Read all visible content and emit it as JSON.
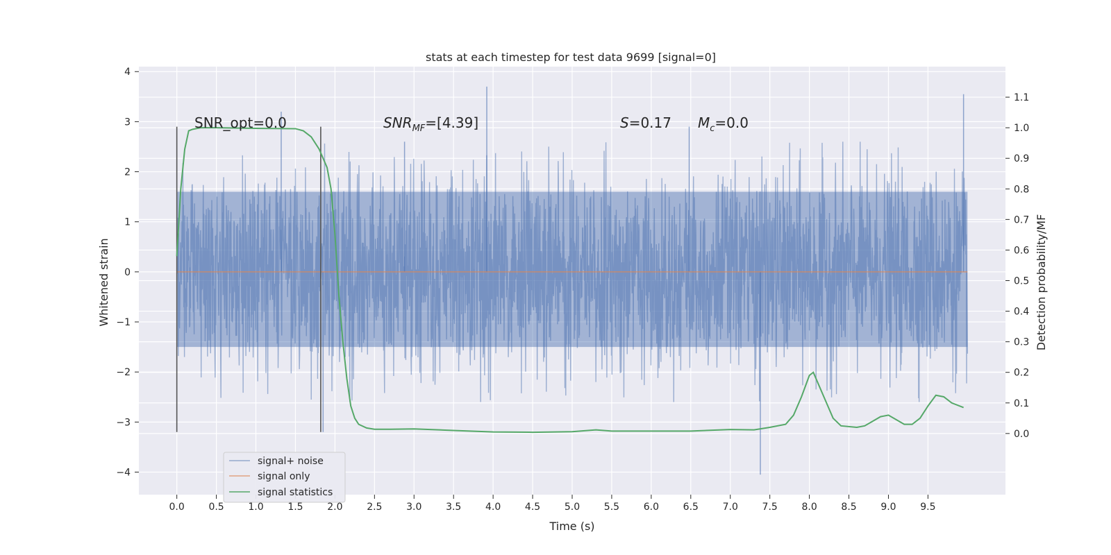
{
  "chart_data": {
    "type": "line",
    "title": "stats at each timestep for test data 9699 [signal=0]",
    "xlabel": "Time (s)",
    "ylabel_left": "Whitened strain",
    "ylabel_right": "Detection probability/MF",
    "xlim": [
      -0.48,
      10.48
    ],
    "ylim_left": [
      -4.45,
      4.1
    ],
    "ylim_right": [
      -0.2,
      1.2
    ],
    "x_ticks": [
      "0.0",
      "0.5",
      "1.0",
      "1.5",
      "2.0",
      "2.5",
      "3.0",
      "3.5",
      "4.0",
      "4.5",
      "5.0",
      "5.5",
      "6.0",
      "6.5",
      "7.0",
      "7.5",
      "8.0",
      "8.5",
      "9.0",
      "9.5"
    ],
    "y_left_ticks": [
      "−4",
      "−3",
      "−2",
      "−1",
      "0",
      "1",
      "2",
      "3",
      "4"
    ],
    "y_right_ticks": [
      "0.0",
      "0.1",
      "0.2",
      "0.3",
      "0.4",
      "0.5",
      "0.6",
      "0.7",
      "0.8",
      "0.9",
      "1.0",
      "1.1"
    ],
    "grid": true,
    "legend_position": "lower-left",
    "annotations": {
      "snr_opt": "SNR_opt=0.0",
      "snr_mf_main": "SNR",
      "snr_mf_sub": "MF",
      "snr_mf_rest": "=[4.39]",
      "s_main": "S",
      "s_rest": "=0.17",
      "mc_main": "M",
      "mc_sub": "c",
      "mc_rest": "=0.0"
    },
    "markers_x": [
      0.0,
      1.82
    ],
    "series": [
      {
        "name": "signal+ noise",
        "color": "#4c72b0",
        "style": "dense noise between about -2.2 and +2.4 with spikes to about 3.7 and -4.0",
        "x_range": [
          0.0,
          10.0
        ],
        "envelope": [
          -1.5,
          1.6
        ],
        "peaks_x": [
          1.32,
          1.85,
          2.88,
          3.92,
          6.48,
          7.38,
          9.95
        ],
        "peaks_y": [
          3.2,
          -3.2,
          2.6,
          3.7,
          2.9,
          -4.05,
          3.55
        ]
      },
      {
        "name": "signal only",
        "color": "#dd8452",
        "x": [
          0.0,
          10.0
        ],
        "y": [
          0.0,
          0.0
        ]
      },
      {
        "name": "signal statistics",
        "color": "#55a868",
        "x": [
          0.0,
          0.05,
          0.1,
          0.15,
          0.2,
          0.3,
          0.5,
          1.0,
          1.5,
          1.6,
          1.7,
          1.8,
          1.9,
          1.95,
          2.0,
          2.05,
          2.1,
          2.15,
          2.2,
          2.25,
          2.3,
          2.4,
          2.5,
          2.7,
          3.0,
          3.5,
          4.0,
          4.5,
          5.0,
          5.1,
          5.3,
          5.5,
          6.0,
          6.5,
          7.0,
          7.3,
          7.5,
          7.7,
          7.8,
          7.9,
          8.0,
          8.05,
          8.1,
          8.2,
          8.3,
          8.4,
          8.6,
          8.7,
          8.8,
          8.9,
          9.0,
          9.1,
          9.2,
          9.3,
          9.4,
          9.5,
          9.6,
          9.7,
          9.8,
          9.95
        ],
        "y": [
          0.58,
          0.8,
          0.93,
          0.99,
          0.995,
          1.0,
          1.0,
          0.998,
          0.997,
          0.99,
          0.97,
          0.93,
          0.87,
          0.8,
          0.65,
          0.45,
          0.3,
          0.18,
          0.09,
          0.05,
          0.03,
          0.018,
          0.014,
          0.014,
          0.015,
          0.01,
          0.005,
          0.004,
          0.006,
          0.008,
          0.012,
          0.008,
          0.008,
          0.008,
          0.013,
          0.012,
          0.02,
          0.03,
          0.06,
          0.12,
          0.19,
          0.2,
          0.17,
          0.11,
          0.05,
          0.025,
          0.02,
          0.025,
          0.04,
          0.055,
          0.06,
          0.045,
          0.03,
          0.03,
          0.05,
          0.09,
          0.125,
          0.12,
          0.1,
          0.085
        ]
      }
    ]
  }
}
